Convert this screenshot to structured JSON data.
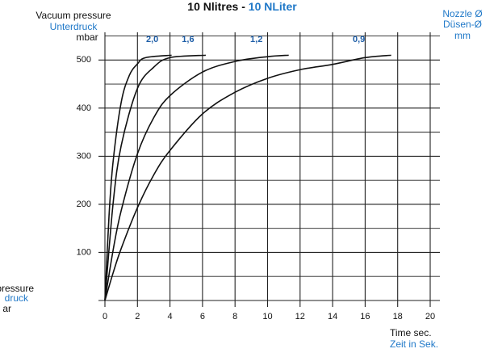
{
  "chart_data": {
    "type": "line",
    "title": "10 Nlitres - ",
    "title_de": "10 NLiter",
    "ylabel": [
      "Vacuum pressure",
      "Unterdruck",
      "mbar"
    ],
    "legend_title": [
      "Nozzle Ø",
      "Düsen-Ø",
      "mm"
    ],
    "left_fragments": [
      "pressure",
      "druck",
      "ar"
    ],
    "xlabel": [
      "Time sec.",
      "Zeit in Sek."
    ],
    "xlim": [
      0,
      20
    ],
    "xticks": [
      0,
      2,
      4,
      6,
      8,
      10,
      12,
      14,
      16,
      18,
      20
    ],
    "ylim": [
      0,
      560
    ],
    "yticks": [
      100,
      200,
      300,
      400,
      500
    ],
    "minor_yticks": [
      50,
      150,
      250,
      350,
      450,
      550
    ],
    "grid": true,
    "series": [
      {
        "name": "2,0",
        "color": "#111111",
        "x": [
          0,
          0.25,
          0.5,
          1,
          1.5,
          2,
          2.5,
          4.1
        ],
        "values": [
          0,
          175,
          288,
          412,
          468,
          492,
          505,
          510
        ]
      },
      {
        "name": "1,6",
        "color": "#111111",
        "x": [
          0,
          0.5,
          1,
          2,
          3,
          4,
          6.2
        ],
        "values": [
          0,
          201,
          322,
          441,
          485,
          505,
          510
        ]
      },
      {
        "name": "1,2",
        "color": "#111111",
        "x": [
          0,
          0.5,
          1,
          2,
          3,
          4,
          6,
          8,
          10,
          11.3
        ],
        "values": [
          0,
          104,
          187,
          305,
          380,
          426,
          475,
          497,
          507,
          510
        ]
      },
      {
        "name": "0,9",
        "color": "#111111",
        "x": [
          0,
          0.5,
          1,
          2,
          3,
          4,
          6,
          8,
          10,
          12,
          14,
          16,
          17.6
        ],
        "values": [
          0,
          57,
          108,
          193,
          261,
          312,
          388,
          433,
          462,
          480,
          491,
          505,
          510
        ]
      }
    ]
  }
}
